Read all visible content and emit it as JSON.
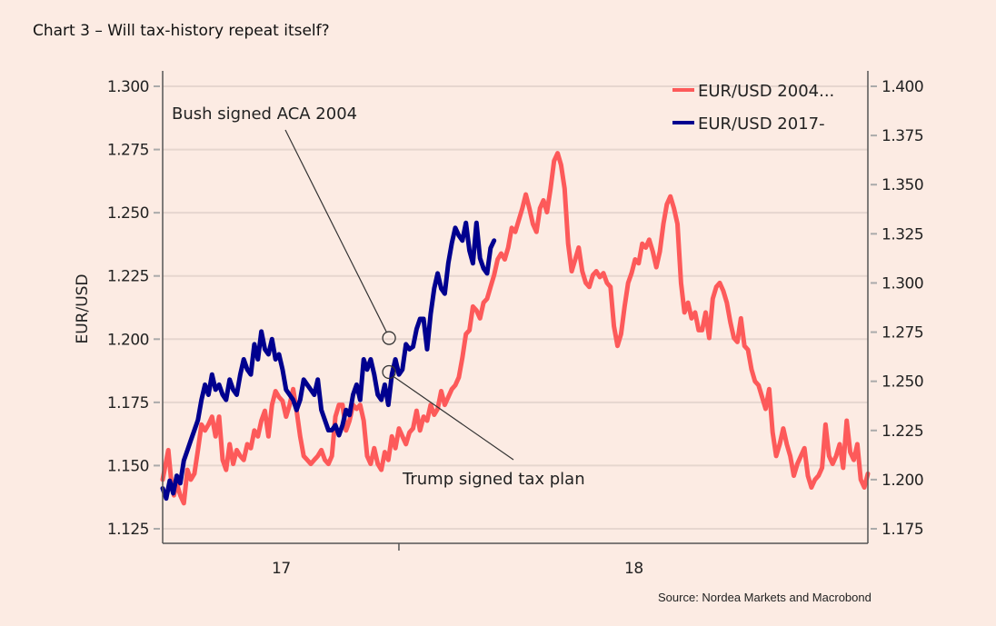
{
  "title": "Chart 3 – Will tax-history repeat itself?",
  "source": "Source: Nordea Markets and Macrobond",
  "colors": {
    "background": "#fcebe3",
    "series_2004": "#fd5a5a",
    "series_2017": "#00008f",
    "grid": "#e6d6cf",
    "axis": "#555555",
    "text": "#222222"
  },
  "chart_data": {
    "type": "line",
    "title": "Chart 3 – Will tax-history repeat itself?",
    "xlabel": "",
    "ylabel": "EUR/USD",
    "x_tick_labels": [
      "17",
      "18"
    ],
    "x_range": [
      0,
      1
    ],
    "x_ticks": [
      {
        "label": "",
        "x": 0.335
      }
    ],
    "x_label_positions": [
      {
        "label": "17",
        "x": 0.168
      },
      {
        "label": "18",
        "x": 0.668
      }
    ],
    "grid": true,
    "legend_position": "top-right",
    "y_left": {
      "label": "EUR/USD",
      "ylim": [
        1.125,
        1.3
      ],
      "ticks": [
        "1.125",
        "1.150",
        "1.175",
        "1.200",
        "1.225",
        "1.250",
        "1.275",
        "1.300"
      ]
    },
    "y_right": {
      "ylim": [
        1.175,
        1.4
      ],
      "ticks": [
        "1.175",
        "1.200",
        "1.225",
        "1.250",
        "1.275",
        "1.300",
        "1.325",
        "1.350",
        "1.375",
        "1.400"
      ]
    },
    "series": [
      {
        "name": "EUR/USD 2004...",
        "axis": "right",
        "color": "#fd5a5a",
        "x": [
          0.0,
          0.008,
          0.012,
          0.016,
          0.02,
          0.025,
          0.03,
          0.035,
          0.04,
          0.045,
          0.05,
          0.055,
          0.06,
          0.065,
          0.07,
          0.075,
          0.08,
          0.085,
          0.09,
          0.095,
          0.1,
          0.105,
          0.11,
          0.115,
          0.12,
          0.125,
          0.13,
          0.135,
          0.14,
          0.145,
          0.15,
          0.155,
          0.16,
          0.165,
          0.17,
          0.175,
          0.18,
          0.185,
          0.19,
          0.195,
          0.2,
          0.205,
          0.21,
          0.215,
          0.22,
          0.225,
          0.23,
          0.235,
          0.24,
          0.245,
          0.25,
          0.255,
          0.26,
          0.265,
          0.27,
          0.275,
          0.28,
          0.285,
          0.29,
          0.295,
          0.3,
          0.305,
          0.31,
          0.315,
          0.32,
          0.325,
          0.33,
          0.335,
          0.34,
          0.345,
          0.35,
          0.355,
          0.36,
          0.365,
          0.37,
          0.375,
          0.38,
          0.385,
          0.39,
          0.395,
          0.4,
          0.405,
          0.41,
          0.415,
          0.42,
          0.425,
          0.43,
          0.435,
          0.44,
          0.445,
          0.45,
          0.455,
          0.46,
          0.465,
          0.47,
          0.475,
          0.48,
          0.485,
          0.49,
          0.495,
          0.5,
          0.505,
          0.51,
          0.515,
          0.52,
          0.525,
          0.53,
          0.535,
          0.54,
          0.545,
          0.55,
          0.555,
          0.56,
          0.565,
          0.57,
          0.575,
          0.58,
          0.585,
          0.59,
          0.595,
          0.6,
          0.605,
          0.61,
          0.615,
          0.62,
          0.625,
          0.63,
          0.635,
          0.64,
          0.645,
          0.65,
          0.655,
          0.66,
          0.665,
          0.67,
          0.675,
          0.68,
          0.685,
          0.69,
          0.695,
          0.7,
          0.705,
          0.71,
          0.715,
          0.72,
          0.725,
          0.73,
          0.735,
          0.74,
          0.745,
          0.75,
          0.755,
          0.76,
          0.765,
          0.77,
          0.775,
          0.78,
          0.785,
          0.79,
          0.795,
          0.8,
          0.805,
          0.81,
          0.815,
          0.82,
          0.825,
          0.83,
          0.835,
          0.84,
          0.845,
          0.85,
          0.855,
          0.86,
          0.865,
          0.87,
          0.875,
          0.88,
          0.885,
          0.89,
          0.895,
          0.9,
          0.905,
          0.91,
          0.915,
          0.92,
          0.925,
          0.93,
          0.935,
          0.94,
          0.945,
          0.95,
          0.955,
          0.96,
          0.965,
          0.97,
          0.975,
          0.98,
          0.985,
          0.99,
          0.995,
          1.0
        ],
        "values": [
          1.2,
          1.215,
          1.2,
          1.192,
          1.198,
          1.192,
          1.188,
          1.205,
          1.2,
          1.203,
          1.215,
          1.228,
          1.225,
          1.228,
          1.232,
          1.222,
          1.232,
          1.21,
          1.205,
          1.218,
          1.208,
          1.215,
          1.212,
          1.21,
          1.218,
          1.216,
          1.225,
          1.222,
          1.23,
          1.235,
          1.222,
          1.238,
          1.245,
          1.242,
          1.24,
          1.232,
          1.238,
          1.246,
          1.235,
          1.222,
          1.212,
          1.21,
          1.208,
          1.21,
          1.212,
          1.215,
          1.21,
          1.208,
          1.212,
          1.232,
          1.238,
          1.238,
          1.225,
          1.23,
          1.238,
          1.236,
          1.238,
          1.23,
          1.212,
          1.208,
          1.216,
          1.208,
          1.205,
          1.214,
          1.21,
          1.222,
          1.216,
          1.226,
          1.222,
          1.218,
          1.224,
          1.226,
          1.235,
          1.225,
          1.232,
          1.23,
          1.238,
          1.233,
          1.236,
          1.245,
          1.238,
          1.242,
          1.246,
          1.248,
          1.252,
          1.262,
          1.274,
          1.276,
          1.288,
          1.286,
          1.282,
          1.29,
          1.292,
          1.298,
          1.304,
          1.312,
          1.315,
          1.312,
          1.318,
          1.328,
          1.326,
          1.332,
          1.338,
          1.345,
          1.338,
          1.33,
          1.326,
          1.338,
          1.342,
          1.336,
          1.348,
          1.362,
          1.366,
          1.36,
          1.348,
          1.32,
          1.306,
          1.312,
          1.318,
          1.306,
          1.3,
          1.298,
          1.304,
          1.306,
          1.303,
          1.305,
          1.3,
          1.298,
          1.278,
          1.268,
          1.274,
          1.288,
          1.3,
          1.305,
          1.312,
          1.31,
          1.32,
          1.318,
          1.322,
          1.316,
          1.308,
          1.316,
          1.33,
          1.34,
          1.344,
          1.338,
          1.33,
          1.3,
          1.285,
          1.29,
          1.282,
          1.285,
          1.276,
          1.276,
          1.285,
          1.272,
          1.292,
          1.298,
          1.3,
          1.296,
          1.29,
          1.28,
          1.272,
          1.27,
          1.282,
          1.268,
          1.266,
          1.256,
          1.25,
          1.248,
          1.242,
          1.236,
          1.246,
          1.224,
          1.212,
          1.218,
          1.226,
          1.218,
          1.212,
          1.202,
          1.208,
          1.212,
          1.216,
          1.202,
          1.196,
          1.2,
          1.202,
          1.206,
          1.228,
          1.212,
          1.208,
          1.212,
          1.218,
          1.206,
          1.23,
          1.214,
          1.21,
          1.218,
          1.2,
          1.196,
          1.203
        ]
      },
      {
        "name": "EUR/USD 2017-",
        "axis": "left",
        "color": "#00008f",
        "x": [
          0.0,
          0.005,
          0.01,
          0.015,
          0.02,
          0.025,
          0.03,
          0.035,
          0.04,
          0.045,
          0.05,
          0.055,
          0.06,
          0.065,
          0.07,
          0.075,
          0.08,
          0.085,
          0.09,
          0.095,
          0.1,
          0.105,
          0.11,
          0.115,
          0.12,
          0.125,
          0.13,
          0.135,
          0.14,
          0.145,
          0.15,
          0.155,
          0.16,
          0.165,
          0.17,
          0.175,
          0.18,
          0.185,
          0.19,
          0.195,
          0.2,
          0.205,
          0.21,
          0.215,
          0.22,
          0.225,
          0.23,
          0.235,
          0.24,
          0.245,
          0.25,
          0.255,
          0.26,
          0.265,
          0.27,
          0.275,
          0.28,
          0.285,
          0.29,
          0.295,
          0.3,
          0.305,
          0.31,
          0.315,
          0.32,
          0.325,
          0.33,
          0.335,
          0.34,
          0.345,
          0.35,
          0.355,
          0.36,
          0.365,
          0.37,
          0.375,
          0.38,
          0.385,
          0.39,
          0.395,
          0.4,
          0.405,
          0.41,
          0.415,
          0.42,
          0.425,
          0.43,
          0.435,
          0.44,
          0.445,
          0.45,
          0.455,
          0.46,
          0.465,
          0.47
        ],
        "values": [
          1.141,
          1.137,
          1.144,
          1.139,
          1.146,
          1.143,
          1.152,
          1.156,
          1.16,
          1.164,
          1.168,
          1.176,
          1.182,
          1.178,
          1.186,
          1.18,
          1.182,
          1.178,
          1.176,
          1.184,
          1.18,
          1.178,
          1.186,
          1.192,
          1.188,
          1.186,
          1.198,
          1.192,
          1.203,
          1.196,
          1.194,
          1.2,
          1.192,
          1.194,
          1.188,
          1.18,
          1.178,
          1.176,
          1.172,
          1.176,
          1.184,
          1.182,
          1.18,
          1.178,
          1.184,
          1.172,
          1.168,
          1.164,
          1.164,
          1.166,
          1.162,
          1.166,
          1.172,
          1.17,
          1.178,
          1.182,
          1.176,
          1.192,
          1.188,
          1.192,
          1.186,
          1.178,
          1.176,
          1.182,
          1.174,
          1.186,
          1.192,
          1.186,
          1.188,
          1.198,
          1.196,
          1.197,
          1.204,
          1.208,
          1.208,
          1.196,
          1.21,
          1.22,
          1.226,
          1.22,
          1.218,
          1.23,
          1.238,
          1.244,
          1.241,
          1.239,
          1.246,
          1.235,
          1.23,
          1.246,
          1.232,
          1.228,
          1.226,
          1.236,
          1.239
        ]
      }
    ],
    "annotations": [
      {
        "text": "Bush signed ACA 2004",
        "series": "EUR/USD 2004...",
        "x": 0.321,
        "value": 1.272
      },
      {
        "text": "Trump signed tax plan",
        "series": "EUR/USD 2017-",
        "x": 0.321,
        "value": 1.187
      }
    ]
  }
}
